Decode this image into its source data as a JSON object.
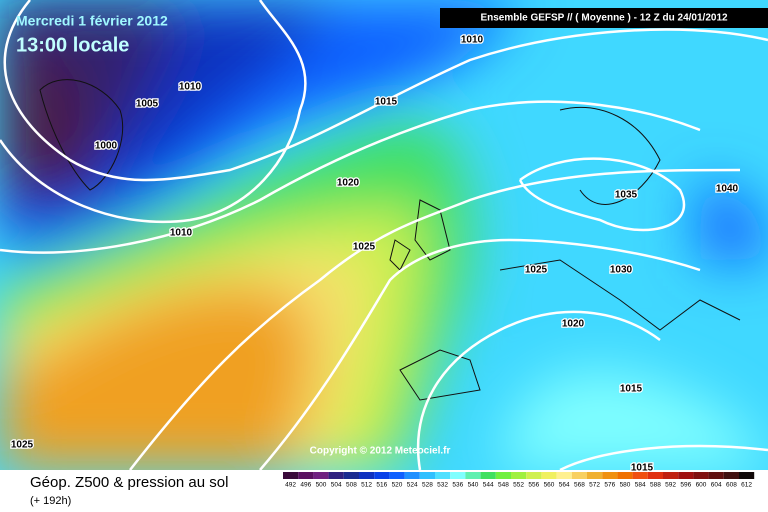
{
  "header": {
    "date": "Mercredi 1 février 2012",
    "time": "13:00 locale",
    "run": "Ensemble GEFSP // ( Moyenne )  -  12 Z du 24/01/2012"
  },
  "isobar_labels": [
    "1010",
    "1010",
    "1005",
    "1000",
    "1015",
    "1020",
    "1010",
    "1025",
    "1035",
    "1040",
    "1025",
    "1030",
    "1020",
    "1015",
    "1025",
    "1015"
  ],
  "copyright": "Copyright © 2012 Meteociel.fr",
  "footer": {
    "title": "Géop. Z500 & pression au sol",
    "lead": "(+ 192h)"
  },
  "legend": {
    "labels": [
      "492",
      "496",
      "500",
      "504",
      "508",
      "512",
      "516",
      "520",
      "524",
      "528",
      "532",
      "536",
      "540",
      "544",
      "548",
      "552",
      "556",
      "560",
      "564",
      "568",
      "572",
      "576",
      "580",
      "584",
      "588",
      "592",
      "596",
      "600",
      "604",
      "608",
      "612"
    ],
    "colors": [
      "#3a0a3a",
      "#5a1060",
      "#702080",
      "#302080",
      "#1a2a90",
      "#1030c0",
      "#0a40e8",
      "#1060ff",
      "#2090ff",
      "#30c0ff",
      "#50e0ff",
      "#80ffff",
      "#60f0b0",
      "#40e060",
      "#70f040",
      "#a0f040",
      "#d0f050",
      "#f0f060",
      "#fff090",
      "#f8d060",
      "#f0b030",
      "#f09010",
      "#f07000",
      "#f05010",
      "#e03010",
      "#c02010",
      "#a01010",
      "#801010",
      "#601010",
      "#401010",
      "#100808"
    ]
  }
}
